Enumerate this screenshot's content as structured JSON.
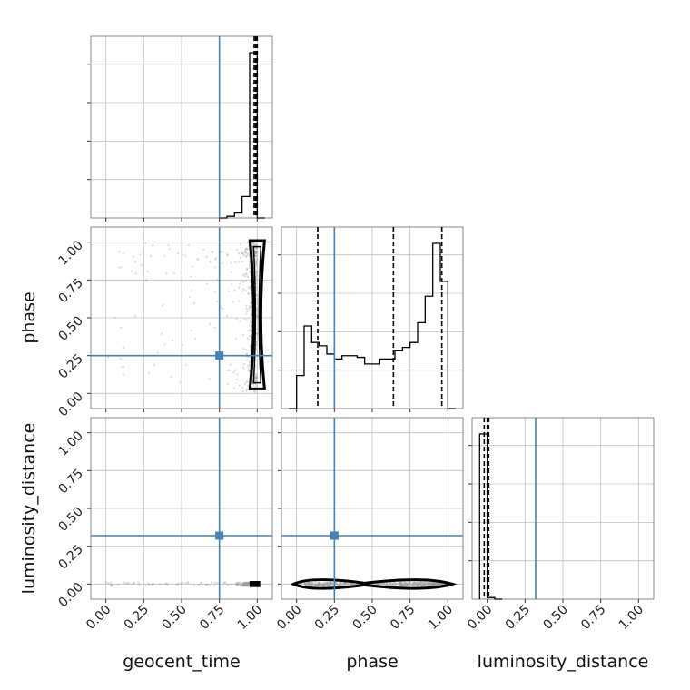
{
  "chart_data": {
    "type": "corner",
    "parameters": [
      "geocent_time",
      "phase",
      "luminosity_distance"
    ],
    "axis_range": [
      -0.1,
      1.1
    ],
    "tick_labels": [
      "0.00",
      "0.25",
      "0.50",
      "0.75",
      "1.00"
    ],
    "tick_values": [
      0,
      0.25,
      0.5,
      0.75,
      1.0
    ],
    "grid": true,
    "colors": {
      "truth": "#4682b4",
      "hist": "#000000",
      "points": "#9a9a9a",
      "grid": "#c0c0c0",
      "frame": "#888888"
    },
    "truths": {
      "geocent_time": 0.75,
      "phase": 0.25,
      "luminosity_distance": 0.32
    },
    "histograms": {
      "geocent_time": {
        "bin_edges": [
          0.75,
          0.8,
          0.85,
          0.9,
          0.95,
          1.0,
          1.05
        ],
        "density": [
          0.0,
          0.01,
          0.03,
          0.13,
          1.0,
          0.0
        ],
        "quantiles": [
          0.98,
          0.99,
          1.0
        ]
      },
      "phase": {
        "bin_edges": [
          -0.05,
          0.0,
          0.05,
          0.1,
          0.15,
          0.2,
          0.25,
          0.3,
          0.35,
          0.4,
          0.45,
          0.5,
          0.55,
          0.6,
          0.65,
          0.7,
          0.75,
          0.8,
          0.85,
          0.9,
          0.95,
          1.0,
          1.05
        ],
        "density": [
          0.0,
          0.2,
          0.5,
          0.4,
          0.38,
          0.33,
          0.3,
          0.32,
          0.32,
          0.31,
          0.27,
          0.27,
          0.3,
          0.3,
          0.35,
          0.37,
          0.4,
          0.52,
          0.68,
          1.0,
          0.77,
          0.0
        ],
        "quantiles": [
          0.14,
          0.64,
          0.96
        ]
      },
      "luminosity_distance": {
        "bin_edges": [
          -0.05,
          0.0,
          0.05,
          0.1
        ],
        "density": [
          1.0,
          0.01,
          0.0
        ],
        "quantiles": [
          -0.02,
          0.0,
          0.01
        ]
      }
    },
    "panels_2d": [
      {
        "x": "geocent_time",
        "y": "phase"
      },
      {
        "x": "geocent_time",
        "y": "luminosity_distance"
      },
      {
        "x": "phase",
        "y": "luminosity_distance"
      }
    ]
  }
}
